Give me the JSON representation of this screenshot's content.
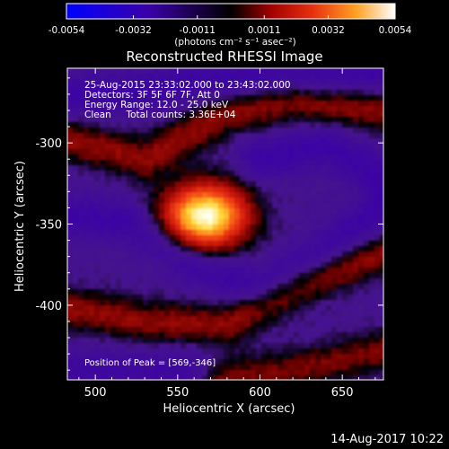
{
  "colorbar": {
    "tick_labels": [
      "-0.0054",
      "-0.0032",
      "-0.0011",
      "0.0011",
      "0.0032",
      "0.0054"
    ],
    "unit": "(photons cm⁻² s⁻¹ asec⁻²)",
    "range": [
      -0.0054,
      0.0054
    ]
  },
  "title": "Reconstructed RHESSI Image",
  "info": {
    "line1": "25-Aug-2015 23:33:02.000 to 23:43:02.000",
    "line2": "Detectors: 3F 5F 6F 7F, Att 0",
    "line3": "Energy Range: 12.0 - 25.0 keV",
    "line4": "Clean     Total counts: 3.36E+04"
  },
  "peak_label": "Position of Peak = [569,-346]",
  "footer_date": "14-Aug-2017 10:22",
  "chart_data": {
    "type": "heatmap",
    "title": "Reconstructed RHESSI Image",
    "xlabel": "Heliocentric X (arcsec)",
    "ylabel": "Heliocentric Y (arcsec)",
    "xlim": [
      483,
      675
    ],
    "ylim": [
      -446,
      -254
    ],
    "x_ticks": [
      500,
      550,
      600,
      650
    ],
    "y_ticks": [
      -300,
      -350,
      -400
    ],
    "peak": {
      "x": 569,
      "y": -346
    },
    "features": [
      {
        "kind": "gaussian",
        "x": 567,
        "y": -345,
        "sx": 18,
        "sy": 14,
        "amp": 1.0
      },
      {
        "kind": "ridge_positive",
        "points": [
          [
            483,
            -298
          ],
          [
            530,
            -310
          ],
          [
            580,
            -282
          ],
          [
            620,
            -274
          ],
          [
            675,
            -280
          ]
        ],
        "amp": 0.35
      },
      {
        "kind": "ridge_positive",
        "points": [
          [
            483,
            -402
          ],
          [
            530,
            -410
          ],
          [
            580,
            -412
          ],
          [
            630,
            -385
          ],
          [
            675,
            -368
          ]
        ],
        "amp": 0.35
      },
      {
        "kind": "ridge_positive",
        "points": [
          [
            575,
            -446
          ],
          [
            620,
            -440
          ],
          [
            675,
            -428
          ]
        ],
        "amp": 0.3
      },
      {
        "kind": "ridge_negative",
        "points": [
          [
            483,
            -272
          ],
          [
            530,
            -268
          ],
          [
            560,
            -262
          ],
          [
            675,
            -258
          ]
        ],
        "amp": -0.25
      },
      {
        "kind": "ridge_negative",
        "points": [
          [
            483,
            -345
          ],
          [
            520,
            -348
          ],
          [
            560,
            -375
          ],
          [
            600,
            -390
          ],
          [
            650,
            -360
          ],
          [
            675,
            -340
          ]
        ],
        "amp": -0.25
      },
      {
        "kind": "ridge_negative",
        "points": [
          [
            600,
            -310
          ],
          [
            640,
            -302
          ],
          [
            675,
            -320
          ]
        ],
        "amp": -0.25
      },
      {
        "kind": "ridge_negative",
        "points": [
          [
            483,
            -440
          ],
          [
            540,
            -440
          ],
          [
            560,
            -440
          ]
        ],
        "amp": -0.2
      }
    ]
  }
}
